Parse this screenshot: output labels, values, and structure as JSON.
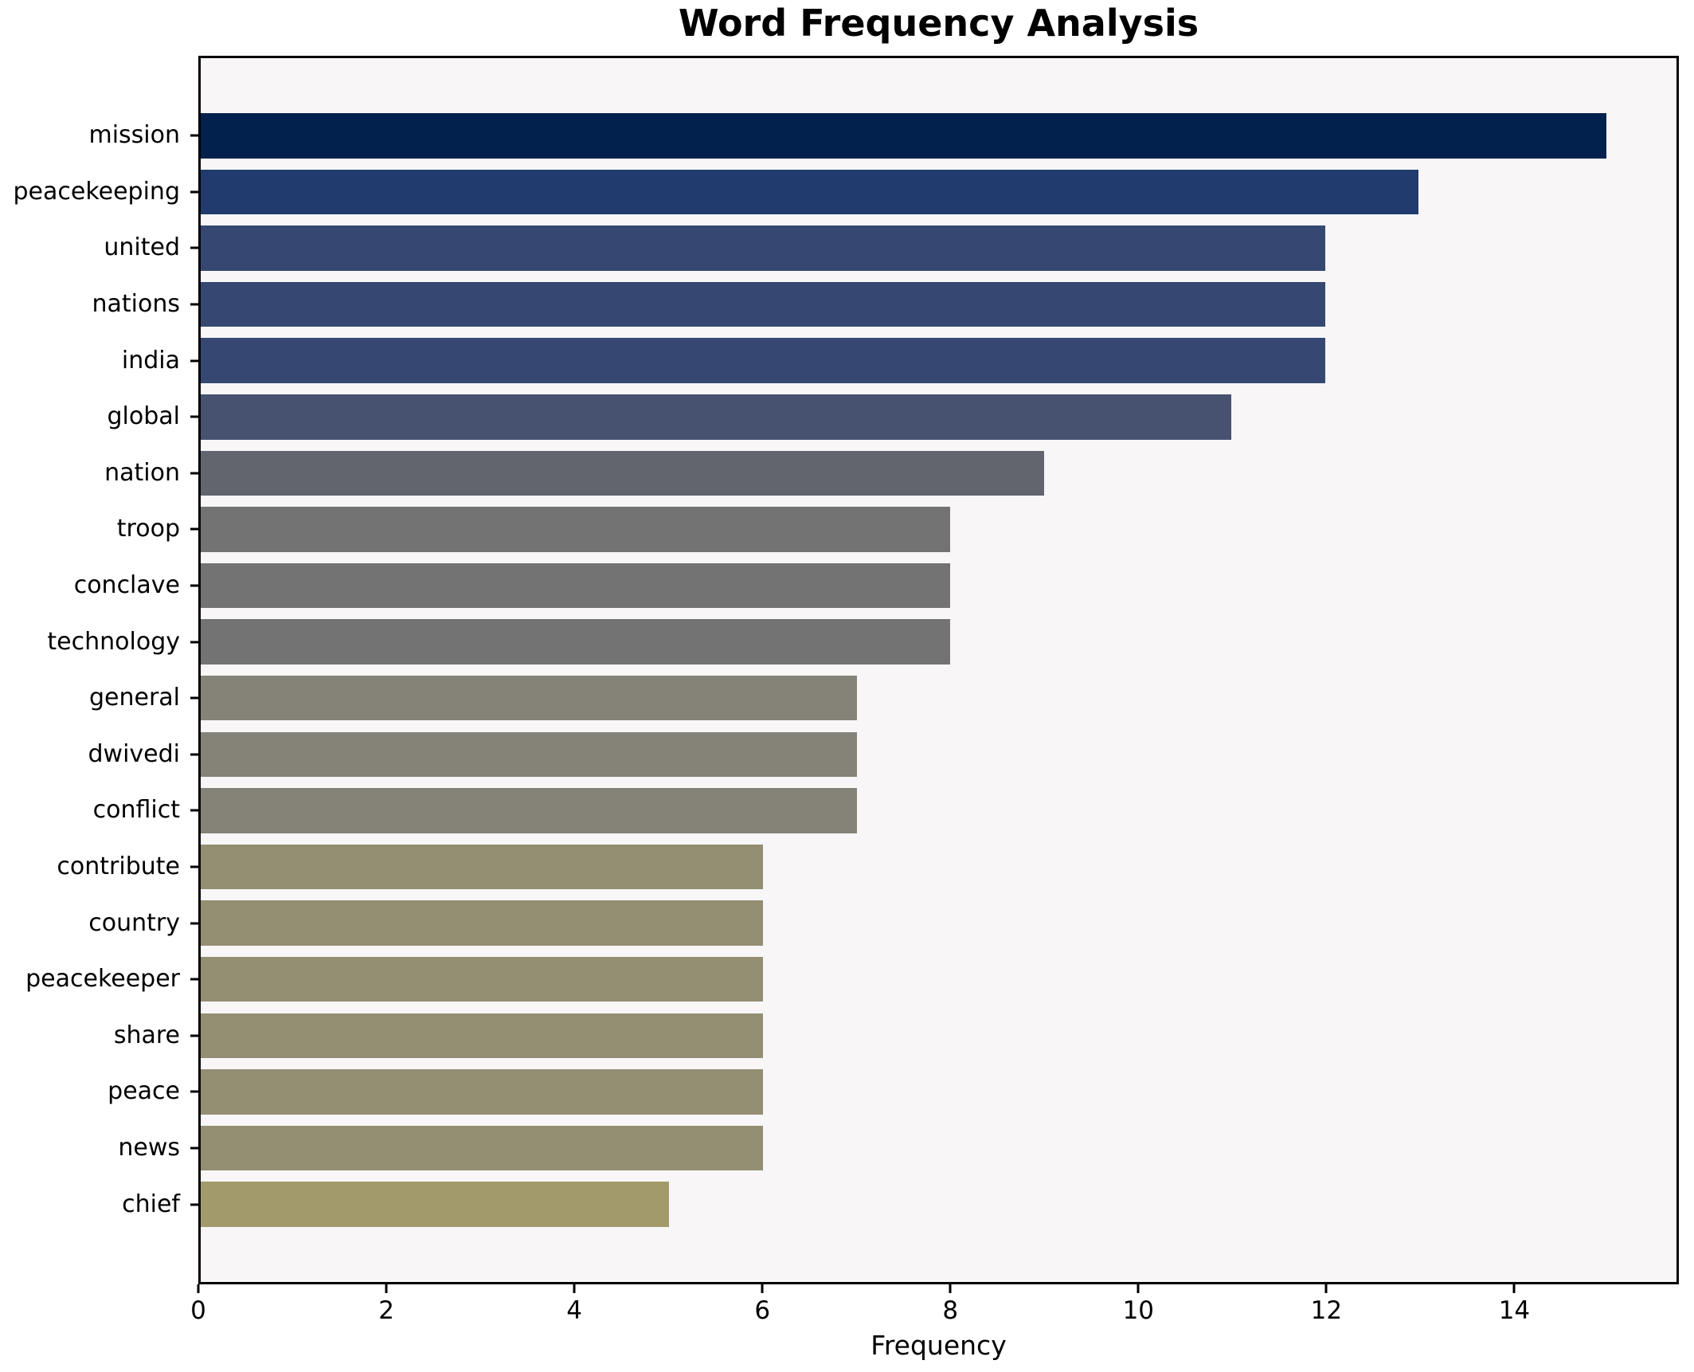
{
  "chart_data": {
    "type": "bar",
    "orientation": "horizontal",
    "title": "Word Frequency Analysis",
    "xlabel": "Frequency",
    "ylabel": "",
    "xlim": [
      0,
      15.75
    ],
    "xticks": [
      0,
      2,
      4,
      6,
      8,
      10,
      12,
      14
    ],
    "grid": false,
    "legend": "none",
    "plot_background": "#f8f6f7",
    "figure_background": "#ffffff",
    "spine_color": "#000000",
    "categories": [
      "mission",
      "peacekeeping",
      "united",
      "nations",
      "india",
      "global",
      "nation",
      "troop",
      "conclave",
      "technology",
      "general",
      "dwivedi",
      "conflict",
      "contribute",
      "country",
      "peacekeeper",
      "share",
      "peace",
      "news",
      "chief"
    ],
    "values": [
      15,
      13,
      12,
      12,
      12,
      11,
      9,
      8,
      8,
      8,
      7,
      7,
      7,
      6,
      6,
      6,
      6,
      6,
      6,
      5
    ],
    "bar_colors": [
      "#02214d",
      "#223b6e",
      "#364872",
      "#364872",
      "#364872",
      "#475270",
      "#62656e",
      "#727372",
      "#727372",
      "#727372",
      "#858278",
      "#858278",
      "#858278",
      "#948e72",
      "#948e72",
      "#948e72",
      "#948e72",
      "#948e72",
      "#948e72",
      "#a39a6c"
    ]
  }
}
